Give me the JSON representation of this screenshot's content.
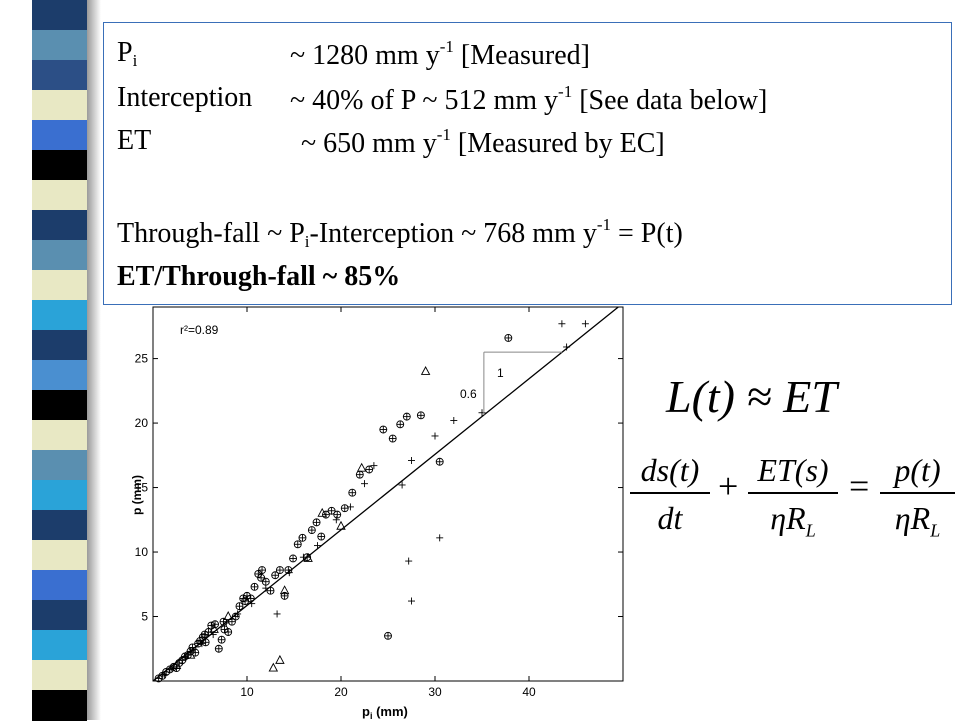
{
  "colors": {
    "stripes": [
      "#1c3d6b",
      "#5a8fb0",
      "#2c4f86",
      "#e8e8c4",
      "#3a6fd0",
      "#000000",
      "#e8e8c4",
      "#1c3d6b",
      "#5a8fb0",
      "#e8e8c4",
      "#2aa3d8",
      "#1c3d6b",
      "#4a8fd0",
      "#000000",
      "#e8e8c4",
      "#5a8fb0",
      "#2aa3d8",
      "#1c3d6b",
      "#e8e8c4",
      "#3a6fd0",
      "#1c3d6b",
      "#2aa3d8",
      "#e8e8c4",
      "#000000"
    ],
    "box_border": "#3a6fb8"
  },
  "info": {
    "pi_sym": "P",
    "pi_sub": "i",
    "pi_val": "~ 1280 mm y",
    "pi_exp": "-1",
    "pi_note": " [Measured]",
    "int_label": "Interception",
    "int_val": "~ 40% of P ~ 512 mm y",
    "int_exp": "-1",
    "int_note": " [See data below]",
    "et_label": "ET",
    "et_val": "~ 650 mm y",
    "et_exp": "-1",
    "et_note": " [Measured by EC]",
    "tf_a": "Through-fall ~ P",
    "tf_sub": "i",
    "tf_b": "-Interception ~ 768 mm y",
    "tf_exp": "-1",
    "tf_c": " = P(t)",
    "ratio": "ET/Through-fall ~ 85%"
  },
  "equations": {
    "approx": "L(t) ≈ ET",
    "f1_num": "ds(t)",
    "f1_den": "dt",
    "plus": "+",
    "f2_num": "ET(s)",
    "f2_den": "ηR",
    "f2_den_sub": "L",
    "equals": "=",
    "f3_num": "p(t)",
    "f3_den": "ηR",
    "f3_den_sub": "L"
  },
  "chart_data": {
    "type": "scatter",
    "xlabel": "p_i (mm)",
    "ylabel": "p (mm)",
    "xlim": [
      0,
      50
    ],
    "ylim": [
      0,
      29
    ],
    "xticks": [
      10,
      20,
      30,
      40
    ],
    "yticks": [
      5,
      10,
      15,
      20,
      25
    ],
    "annotation": "r²=0.89",
    "slope_label_run": "1",
    "slope_label_rise": "0.6",
    "fit_line": {
      "x": [
        0,
        49.5
      ],
      "y": [
        0,
        29
      ]
    },
    "series": [
      {
        "marker": "circle-plus",
        "points": [
          [
            0.6,
            0.2
          ],
          [
            1.0,
            0.4
          ],
          [
            1.4,
            0.7
          ],
          [
            1.8,
            0.9
          ],
          [
            2.2,
            1.1
          ],
          [
            2.5,
            1.0
          ],
          [
            2.8,
            1.4
          ],
          [
            3.1,
            1.6
          ],
          [
            3.4,
            1.9
          ],
          [
            3.7,
            2.0
          ],
          [
            4.0,
            2.3
          ],
          [
            4.2,
            2.6
          ],
          [
            4.5,
            2.2
          ],
          [
            4.8,
            2.9
          ],
          [
            5.0,
            3.1
          ],
          [
            5.3,
            3.4
          ],
          [
            5.6,
            3.0
          ],
          [
            5.9,
            3.8
          ],
          [
            6.2,
            4.3
          ],
          [
            6.6,
            4.4
          ],
          [
            7.0,
            2.5
          ],
          [
            7.3,
            3.2
          ],
          [
            7.6,
            4.0
          ],
          [
            8.0,
            3.8
          ],
          [
            8.4,
            4.6
          ],
          [
            8.8,
            5.0
          ],
          [
            9.2,
            5.8
          ],
          [
            9.6,
            6.4
          ],
          [
            10.0,
            6.6
          ],
          [
            10.4,
            6.4
          ],
          [
            10.8,
            7.3
          ],
          [
            11.2,
            8.3
          ],
          [
            11.6,
            8.6
          ],
          [
            12.0,
            7.7
          ],
          [
            12.5,
            7.0
          ],
          [
            13.0,
            8.2
          ],
          [
            13.5,
            8.6
          ],
          [
            14.0,
            6.6
          ],
          [
            14.4,
            8.6
          ],
          [
            14.9,
            9.5
          ],
          [
            15.4,
            10.6
          ],
          [
            15.9,
            11.1
          ],
          [
            16.4,
            9.6
          ],
          [
            16.9,
            11.7
          ],
          [
            17.4,
            12.3
          ],
          [
            17.9,
            11.2
          ],
          [
            18.4,
            12.9
          ],
          [
            19.0,
            13.2
          ],
          [
            19.6,
            12.9
          ],
          [
            20.4,
            13.4
          ],
          [
            21.2,
            14.6
          ],
          [
            22.0,
            16.0
          ],
          [
            23.0,
            16.4
          ],
          [
            24.5,
            19.5
          ],
          [
            25.5,
            18.8
          ],
          [
            26.3,
            19.9
          ],
          [
            27.0,
            20.5
          ],
          [
            28.5,
            20.6
          ],
          [
            30.5,
            17.0
          ],
          [
            37.8,
            26.6
          ],
          [
            25.0,
            3.5
          ],
          [
            9.8,
            6.2
          ],
          [
            11.5,
            8.0
          ],
          [
            7.5,
            4.6
          ],
          [
            5.5,
            3.6
          ]
        ]
      },
      {
        "marker": "plus",
        "points": [
          [
            1.2,
            0.5
          ],
          [
            2.0,
            1.0
          ],
          [
            3.5,
            1.8
          ],
          [
            5.2,
            2.9
          ],
          [
            6.4,
            3.6
          ],
          [
            7.8,
            4.5
          ],
          [
            9.0,
            5.2
          ],
          [
            10.5,
            6.0
          ],
          [
            12.0,
            7.2
          ],
          [
            13.2,
            5.2
          ],
          [
            14.5,
            8.4
          ],
          [
            16.0,
            9.6
          ],
          [
            17.5,
            10.5
          ],
          [
            19.5,
            12.5
          ],
          [
            21.0,
            13.5
          ],
          [
            22.5,
            15.3
          ],
          [
            23.5,
            16.7
          ],
          [
            26.5,
            15.2
          ],
          [
            27.5,
            17.1
          ],
          [
            30.5,
            11.1
          ],
          [
            32.0,
            20.2
          ],
          [
            35.0,
            20.8
          ],
          [
            43.5,
            27.7
          ],
          [
            46.0,
            27.7
          ],
          [
            27.5,
            6.2
          ],
          [
            27.2,
            9.3
          ],
          [
            44.0,
            25.9
          ],
          [
            30.0,
            19.0
          ]
        ]
      },
      {
        "marker": "triangle",
        "points": [
          [
            2.5,
            1.2
          ],
          [
            4.0,
            2.0
          ],
          [
            6.5,
            4.0
          ],
          [
            8.0,
            5.0
          ],
          [
            12.8,
            1.0
          ],
          [
            14.0,
            7.0
          ],
          [
            16.5,
            9.5
          ],
          [
            18.0,
            13.0
          ],
          [
            20.0,
            12.0
          ],
          [
            22.2,
            16.5
          ],
          [
            29.0,
            24.0
          ],
          [
            13.5,
            1.6
          ]
        ]
      }
    ]
  }
}
